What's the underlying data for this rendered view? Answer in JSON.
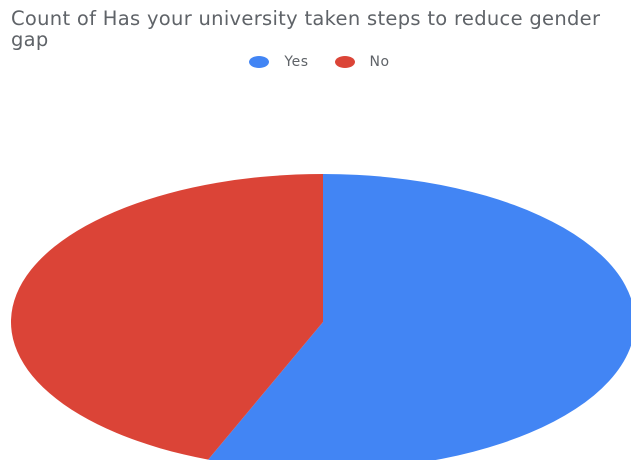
{
  "chart_data": {
    "type": "pie",
    "title": "Count of Has your university taken steps to reduce gender gap",
    "legend_position": "top",
    "categories": [
      "Yes",
      "No"
    ],
    "values": [
      56,
      44
    ],
    "colors": [
      "#4285f4",
      "#db4437"
    ]
  }
}
